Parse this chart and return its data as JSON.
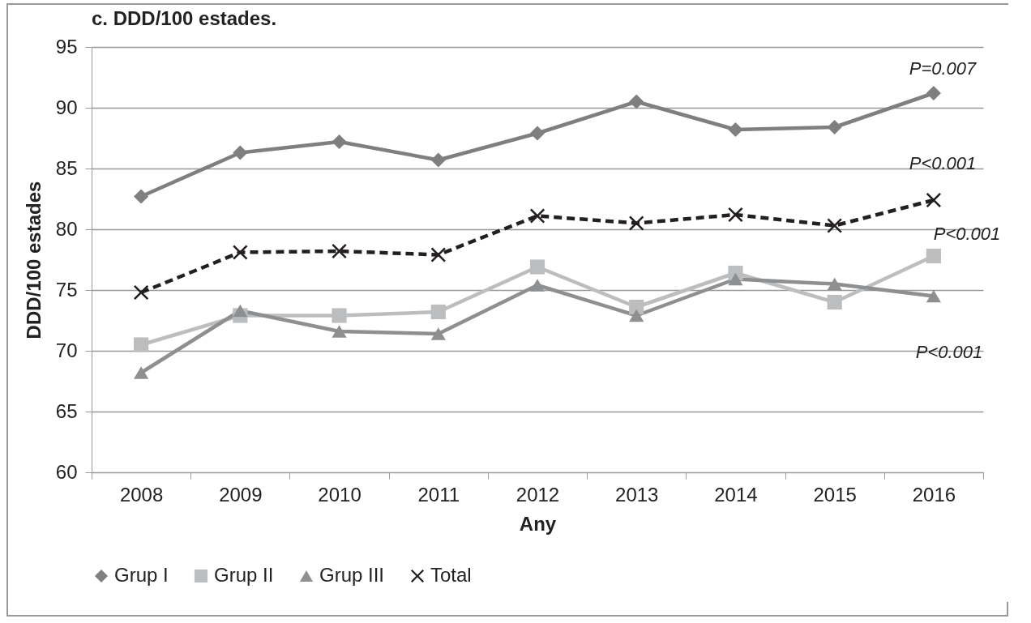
{
  "chart_data": {
    "type": "line",
    "title": "c. DDD/100 estades.",
    "xlabel": "Any",
    "ylabel": "DDD/100 estades",
    "categories": [
      "2008",
      "2009",
      "2010",
      "2011",
      "2012",
      "2013",
      "2014",
      "2015",
      "2016"
    ],
    "series": [
      {
        "name": "Grup I",
        "color": "#7f7f80",
        "marker": "diamond",
        "line_style": "solid",
        "values": [
          82.7,
          86.3,
          87.2,
          85.7,
          87.9,
          90.5,
          88.2,
          88.4,
          91.2
        ]
      },
      {
        "name": "Grup II",
        "color": "#bcbdbf",
        "marker": "square",
        "line_style": "solid",
        "values": [
          70.5,
          72.9,
          72.9,
          73.2,
          76.9,
          73.6,
          76.4,
          74.0,
          77.8
        ]
      },
      {
        "name": "Grup III",
        "color": "#8e8f91",
        "marker": "triangle",
        "line_style": "solid",
        "values": [
          68.2,
          73.3,
          71.6,
          71.4,
          75.4,
          72.9,
          75.9,
          75.5,
          74.5
        ]
      },
      {
        "name": "Total",
        "color": "#231f20",
        "marker": "cross",
        "line_style": "dashed",
        "values": [
          74.8,
          78.1,
          78.2,
          77.9,
          81.1,
          80.5,
          81.2,
          80.3,
          82.4
        ]
      }
    ],
    "ylim": [
      60,
      95
    ],
    "yticks": [
      60,
      65,
      70,
      75,
      80,
      85,
      90,
      95
    ],
    "grid": "y",
    "legend": "bottom",
    "annotations": [
      "P=0.007",
      "P<0.001",
      "P<0.001",
      "P<0.001"
    ]
  }
}
